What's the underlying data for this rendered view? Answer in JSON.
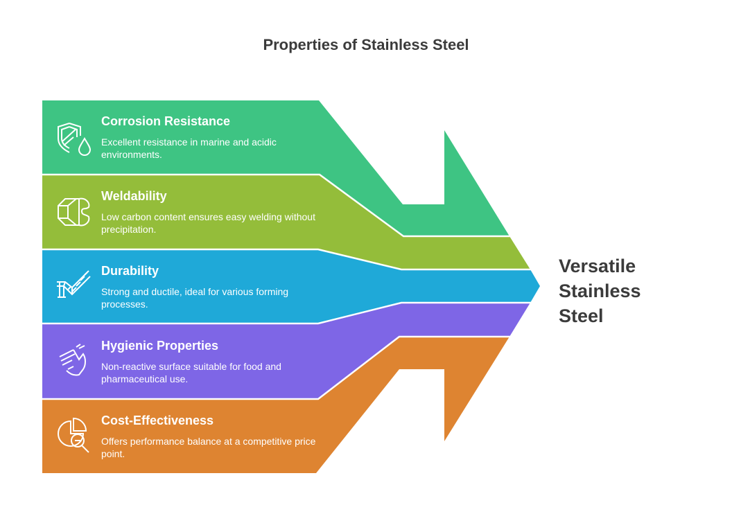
{
  "title": "Properties of Stainless Steel",
  "result": {
    "lines": [
      "Versatile",
      "Stainless",
      "Steel"
    ]
  },
  "items": [
    {
      "title": "Corrosion Resistance",
      "desc": "Excellent resistance in marine and acidic environments.",
      "icon": "shield-droplet-icon",
      "color": "#3EC483"
    },
    {
      "title": "Weldability",
      "desc": "Low carbon content ensures easy welding without precipitation.",
      "icon": "weld-joint-icon",
      "color": "#94BD3A"
    },
    {
      "title": "Durability",
      "desc": "Strong and ductile, ideal for various forming processes.",
      "icon": "bridge-icon",
      "color": "#1FA9D8"
    },
    {
      "title": "Hygienic Properties",
      "desc": "Non-reactive surface suitable for food and pharmaceutical use.",
      "icon": "washing-hands-icon",
      "color": "#7E66E6"
    },
    {
      "title": "Cost-Effectiveness",
      "desc": "Offers performance balance at a competitive price point.",
      "icon": "pie-chart-search-icon",
      "color": "#DE8431"
    }
  ]
}
